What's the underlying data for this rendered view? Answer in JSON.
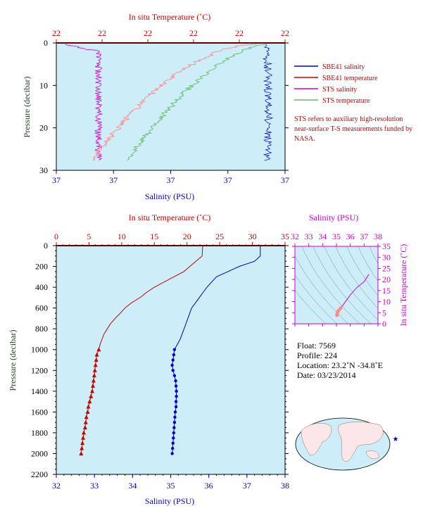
{
  "colors": {
    "plot_bg": "#cdeef8",
    "temp": "#cc0000",
    "sal": "#0000cc",
    "sts_sal": "#cc00cc",
    "sts_temp": "#66bb66",
    "sts_temp_pink": "#ff8888",
    "pressure": "#224422"
  },
  "top_panel": {
    "title_top": "In situ Temperature (˚C)",
    "top_ticks": [
      "22",
      "22",
      "22",
      "22",
      "22",
      "22"
    ],
    "xlabel": "Salinity (PSU)",
    "bottom_ticks": [
      "37",
      "37",
      "37",
      "37",
      "37"
    ],
    "ylabel": "Pressure (decibar)",
    "y_ticks": [
      "0",
      "10",
      "20",
      "30"
    ],
    "legend": [
      {
        "label": "SBE41 salinity",
        "color": "#0000cc"
      },
      {
        "label": "SBE41 temperature",
        "color": "#cc0000"
      },
      {
        "label": "STS salinity",
        "color": "#cc00cc"
      },
      {
        "label": "STS temperature",
        "color": "#66bb66"
      }
    ],
    "note": "STS refers to auxiliary high-resolution near-surface T-S measurements funded by NASA."
  },
  "main_panel": {
    "title_top": "In situ Temperature (˚C)",
    "top_ticks": [
      "0",
      "5",
      "10",
      "15",
      "20",
      "25",
      "30",
      "35"
    ],
    "xlabel": "Salinity (PSU)",
    "bottom_ticks": [
      "32",
      "33",
      "34",
      "35",
      "36",
      "37",
      "38"
    ],
    "ylabel": "Pressure (decibar)",
    "y_ticks": [
      "0",
      "200",
      "400",
      "600",
      "800",
      "1000",
      "1200",
      "1400",
      "1600",
      "1800",
      "2000",
      "2200"
    ]
  },
  "ts_panel": {
    "title_top": "Salinity (PSU)",
    "top_ticks": [
      "32",
      "33",
      "34",
      "35",
      "36",
      "37",
      "38"
    ],
    "ylabel": "In situ Temperature (˚C)",
    "y_ticks": [
      "0",
      "5",
      "10",
      "15",
      "20",
      "25",
      "30",
      "35"
    ]
  },
  "float_info": {
    "float_line": "Float: 7569",
    "profile_line": "Profile: 224",
    "location_line": "Location: 23.2˚N -34.8˚E",
    "date_line": "Date: 03/23/2014"
  },
  "chart_data": [
    {
      "type": "line",
      "title": "",
      "xlabel": "Salinity (PSU)",
      "x2label": "In situ Temperature (˚C)",
      "ylabel": "Pressure (decibar)",
      "xlim": [
        32,
        38
      ],
      "x2lim": [
        0,
        35
      ],
      "ylim": [
        2200,
        0
      ],
      "series": [
        {
          "name": "SBE41 temperature",
          "axis": "temperature",
          "points": [
            [
              22.4,
              0
            ],
            [
              22.4,
              5
            ],
            [
              22.3,
              100
            ],
            [
              19.5,
              250
            ],
            [
              18.0,
              300
            ],
            [
              16.5,
              350
            ],
            [
              15.0,
              400
            ],
            [
              13.8,
              450
            ],
            [
              12.8,
              500
            ],
            [
              11.5,
              550
            ],
            [
              10.5,
              600
            ],
            [
              9.8,
              650
            ],
            [
              9.0,
              700
            ],
            [
              8.3,
              750
            ],
            [
              7.8,
              800
            ],
            [
              7.3,
              850
            ],
            [
              7.0,
              900
            ],
            [
              6.7,
              950
            ],
            [
              6.5,
              1000
            ],
            [
              6.2,
              1050
            ],
            [
              6.1,
              1100
            ],
            [
              6.0,
              1150
            ],
            [
              5.9,
              1200
            ],
            [
              5.8,
              1250
            ],
            [
              5.7,
              1300
            ],
            [
              5.6,
              1350
            ],
            [
              5.5,
              1400
            ],
            [
              5.3,
              1450
            ],
            [
              5.1,
              1500
            ],
            [
              4.9,
              1550
            ],
            [
              4.8,
              1600
            ],
            [
              4.6,
              1650
            ],
            [
              4.5,
              1700
            ],
            [
              4.4,
              1750
            ],
            [
              4.2,
              1800
            ],
            [
              4.1,
              1850
            ],
            [
              4.0,
              1900
            ],
            [
              3.9,
              1950
            ],
            [
              3.8,
              2000
            ]
          ]
        },
        {
          "name": "SBE41 salinity",
          "axis": "salinity",
          "points": [
            [
              37.35,
              0
            ],
            [
              37.35,
              100
            ],
            [
              37.2,
              150
            ],
            [
              36.8,
              200
            ],
            [
              36.5,
              250
            ],
            [
              36.2,
              300
            ],
            [
              35.95,
              400
            ],
            [
              35.85,
              450
            ],
            [
              35.75,
              500
            ],
            [
              35.65,
              550
            ],
            [
              35.55,
              600
            ],
            [
              35.45,
              700
            ],
            [
              35.35,
              800
            ],
            [
              35.25,
              900
            ],
            [
              35.1,
              1000
            ],
            [
              35.08,
              1050
            ],
            [
              35.06,
              1100
            ],
            [
              35.04,
              1150
            ],
            [
              35.06,
              1200
            ],
            [
              35.1,
              1250
            ],
            [
              35.13,
              1300
            ],
            [
              35.14,
              1350
            ],
            [
              35.15,
              1400
            ],
            [
              35.15,
              1450
            ],
            [
              35.14,
              1500
            ],
            [
              35.14,
              1550
            ],
            [
              35.12,
              1600
            ],
            [
              35.11,
              1650
            ],
            [
              35.1,
              1700
            ],
            [
              35.09,
              1750
            ],
            [
              35.08,
              1800
            ],
            [
              35.07,
              1850
            ],
            [
              35.06,
              1900
            ],
            [
              35.05,
              1950
            ],
            [
              35.04,
              2000
            ]
          ]
        }
      ]
    },
    {
      "type": "scatter",
      "title": "",
      "xlabel": "Salinity (PSU)",
      "ylabel": "In situ Temperature (˚C)",
      "xlim": [
        32,
        38
      ],
      "ylim": [
        0,
        35
      ],
      "series": [
        {
          "name": "",
          "points": [
            [
              37.35,
              22.4
            ],
            [
              37.0,
              19.0
            ],
            [
              36.5,
              16.5
            ],
            [
              36.0,
              13.0
            ],
            [
              35.6,
              9.5
            ],
            [
              35.3,
              7.0
            ],
            [
              35.15,
              6.0
            ],
            [
              35.1,
              5.5
            ],
            [
              35.05,
              4.5
            ],
            [
              35.04,
              3.8
            ]
          ]
        }
      ]
    }
  ]
}
